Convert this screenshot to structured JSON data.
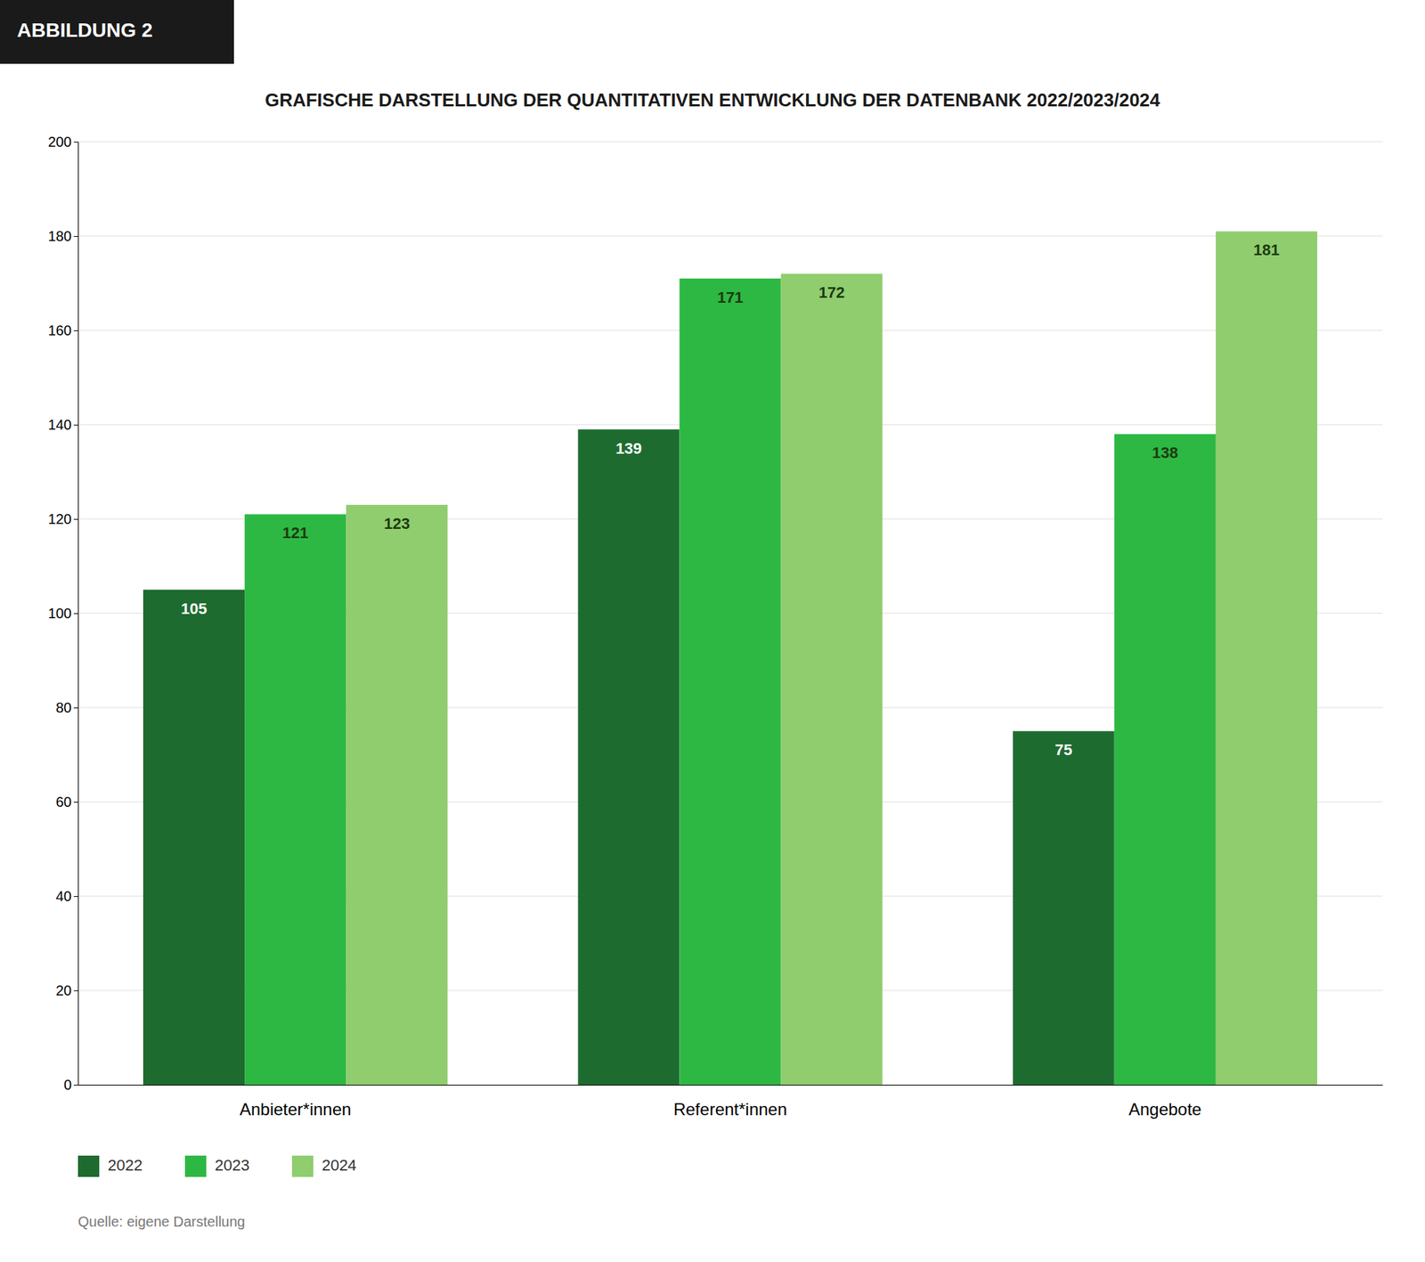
{
  "chart_data": {
    "type": "bar",
    "title": "GRAFISCHE DARSTELLUNG DER QUANTITATIVEN ENTWICKLUNG DER DATENBANK 2022/2023/2024",
    "annotations": [
      "ABBILDUNG 2",
      "Quelle: eigene Darstellung"
    ],
    "categories": [
      "Anbieter*innen",
      "Referent*innen",
      "Angebote"
    ],
    "series": [
      {
        "name": "2022",
        "color": "#1e6b30",
        "values": [
          105,
          139,
          75
        ]
      },
      {
        "name": "2023",
        "color": "#2db844",
        "values": [
          121,
          171,
          138
        ]
      },
      {
        "name": "2024",
        "color": "#8fcd6e",
        "values": [
          123,
          172,
          181
        ]
      }
    ],
    "ylim": [
      0,
      200
    ],
    "yticks": [
      0,
      20,
      40,
      60,
      80,
      100,
      120,
      140,
      160,
      180,
      200
    ],
    "grid": true,
    "legend": "bottom",
    "data_labels": true
  }
}
